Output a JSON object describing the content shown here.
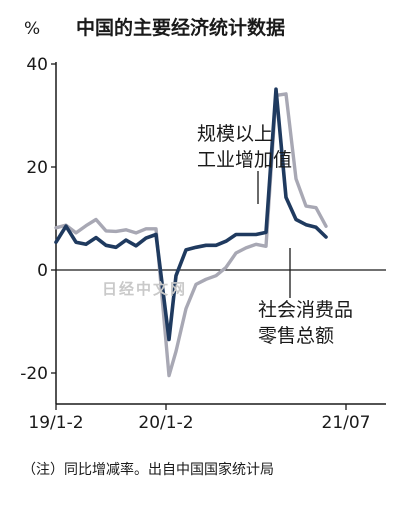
{
  "chart_data": {
    "type": "line",
    "title": "中国的主要经济统计数据",
    "unit": "%",
    "ylim": [
      -25,
      40
    ],
    "yticks": [
      40,
      20,
      0,
      -20
    ],
    "ytick_labels": [
      "40",
      "20",
      "0",
      "-20"
    ],
    "x_range": [
      0,
      32
    ],
    "xticks": [
      {
        "x": 0,
        "label": "19/1-2"
      },
      {
        "x": 11,
        "label": "20/1-2"
      },
      {
        "x": 29,
        "label": "21/07"
      }
    ],
    "series": [
      {
        "name": "规模以上 工业增加值",
        "color": "#1f3a5f",
        "points": [
          [
            0,
            5.4
          ],
          [
            1,
            8.5
          ],
          [
            2,
            5.4
          ],
          [
            3,
            5.0
          ],
          [
            4,
            6.3
          ],
          [
            5,
            4.8
          ],
          [
            6,
            4.4
          ],
          [
            7,
            5.8
          ],
          [
            8,
            4.7
          ],
          [
            9,
            6.2
          ],
          [
            10,
            6.9
          ],
          [
            11.3,
            -13.5
          ],
          [
            12,
            -1.1
          ],
          [
            13,
            3.9
          ],
          [
            14,
            4.4
          ],
          [
            15,
            4.8
          ],
          [
            16,
            4.8
          ],
          [
            17,
            5.6
          ],
          [
            18,
            6.9
          ],
          [
            19,
            6.9
          ],
          [
            20,
            6.9
          ],
          [
            21,
            7.3
          ],
          [
            22,
            35.1
          ],
          [
            23,
            14.1
          ],
          [
            24,
            9.8
          ],
          [
            25,
            8.8
          ],
          [
            26,
            8.3
          ],
          [
            27,
            6.4
          ]
        ]
      },
      {
        "name": "社会消费品 零售总额",
        "color": "#a8a8b4",
        "points": [
          [
            0,
            8.2
          ],
          [
            1,
            8.7
          ],
          [
            2,
            7.2
          ],
          [
            3,
            8.6
          ],
          [
            4,
            9.8
          ],
          [
            5,
            7.6
          ],
          [
            6,
            7.5
          ],
          [
            7,
            7.8
          ],
          [
            8,
            7.2
          ],
          [
            9,
            8.0
          ],
          [
            10,
            8.0
          ],
          [
            11.3,
            -20.5
          ],
          [
            12,
            -15.8
          ],
          [
            13,
            -7.5
          ],
          [
            14,
            -2.8
          ],
          [
            15,
            -1.8
          ],
          [
            16,
            -1.1
          ],
          [
            17,
            0.5
          ],
          [
            18,
            3.3
          ],
          [
            19,
            4.3
          ],
          [
            20,
            5.0
          ],
          [
            21,
            4.6
          ],
          [
            22,
            33.9
          ],
          [
            23,
            34.2
          ],
          [
            24,
            17.7
          ],
          [
            25,
            12.4
          ],
          [
            26,
            12.1
          ],
          [
            27,
            8.5
          ]
        ]
      }
    ],
    "annotations": [
      {
        "series": 0,
        "lines": [
          "规模以上",
          "工业增加值"
        ]
      },
      {
        "series": 1,
        "lines": [
          "社会消费品",
          "零售总额"
        ]
      }
    ],
    "watermark": "日经中文网",
    "note": "（注）同比增减率。出自中国国家统计局",
    "grid": false,
    "legend": "inline"
  }
}
